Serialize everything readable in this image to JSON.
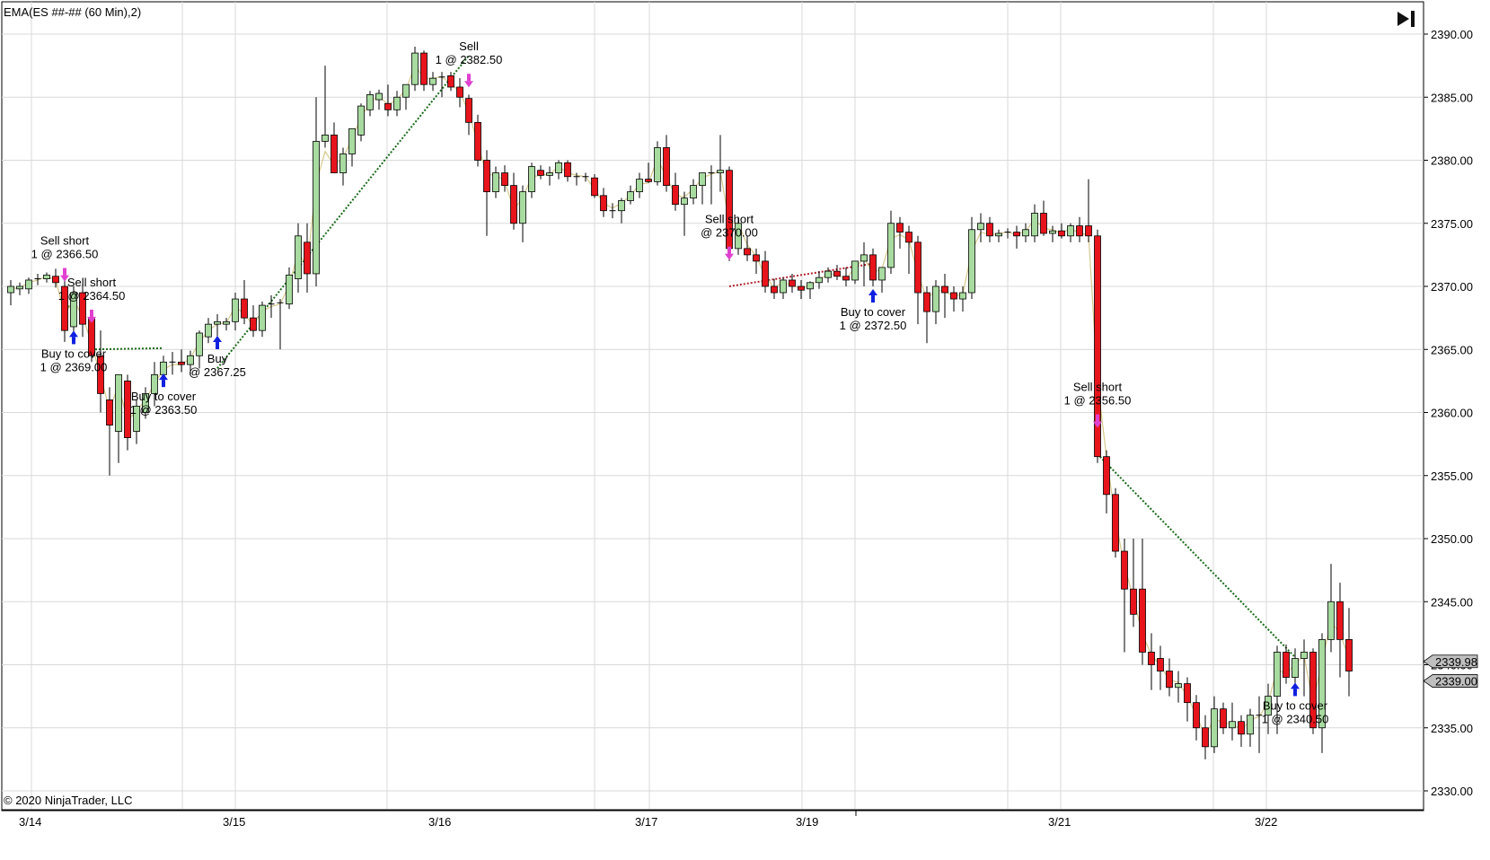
{
  "header": {
    "indicator_label": "EMA(ES ##-## (60 Min),2)"
  },
  "footer": {
    "copyright": "© 2020 NinjaTrader, LLC"
  },
  "price_tags": [
    "2339.98",
    "2339.00"
  ],
  "colors": {
    "up": "#a8dba0",
    "down": "#e8141c",
    "ema": "#d6c98c",
    "buy_arrow": "#1020e0",
    "sell_arrow": "#e040d0",
    "trade_line": "#1a6b1a",
    "grid": "#d9d9d9"
  },
  "chart_data": {
    "type": "candlestick",
    "title": "",
    "ylim": [
      2328,
      2392
    ],
    "y_ticks": [
      "2390.00",
      "2385.00",
      "2380.00",
      "2375.00",
      "2370.00",
      "2365.00",
      "2360.00",
      "2355.00",
      "2350.00",
      "2345.00",
      "2340.00",
      "2335.00",
      "2330.00"
    ],
    "x_labels": [
      "3/14",
      "3/15",
      "3/16",
      "3/17",
      "3/19",
      "3/21",
      "3/22"
    ],
    "x_label_index": [
      1,
      22,
      43,
      64,
      80,
      105,
      126
    ],
    "grid": true,
    "candles": [
      [
        2369.5,
        2370.5,
        2368.5,
        2370.0
      ],
      [
        2369.8,
        2370.3,
        2369.3,
        2370.0
      ],
      [
        2369.8,
        2370.7,
        2369.4,
        2370.5
      ],
      [
        2370.5,
        2371.0,
        2370.1,
        2370.6
      ],
      [
        2370.6,
        2371.1,
        2370.3,
        2370.9
      ],
      [
        2370.8,
        2371.4,
        2369.9,
        2370.3
      ],
      [
        2370.0,
        2371.2,
        2365.6,
        2366.5
      ],
      [
        2366.8,
        2370.0,
        2366.0,
        2369.5
      ],
      [
        2369.5,
        2370.2,
        2366.0,
        2367.0
      ],
      [
        2367.5,
        2367.9,
        2364.0,
        2364.5
      ],
      [
        2364.5,
        2366.5,
        2360.0,
        2361.5
      ],
      [
        2361.0,
        2362.0,
        2355.0,
        2359.0
      ],
      [
        2358.5,
        2363.0,
        2356.0,
        2363.0
      ],
      [
        2362.5,
        2363.0,
        2357.0,
        2358.0
      ],
      [
        2358.5,
        2361.0,
        2357.5,
        2360.5
      ],
      [
        2360.0,
        2362.0,
        2359.5,
        2361.5
      ],
      [
        2361.5,
        2364.0,
        2360.5,
        2363.0
      ],
      [
        2363.0,
        2364.5,
        2362.5,
        2364.0
      ],
      [
        2364.0,
        2364.8,
        2363.0,
        2364.0
      ],
      [
        2364.0,
        2365.0,
        2363.2,
        2363.8
      ],
      [
        2363.8,
        2364.9,
        2363.0,
        2364.5
      ],
      [
        2364.5,
        2366.5,
        2363.5,
        2366.3
      ],
      [
        2366.0,
        2367.5,
        2365.5,
        2367.0
      ],
      [
        2367.0,
        2367.8,
        2366.0,
        2367.2
      ],
      [
        2367.0,
        2367.5,
        2366.5,
        2367.2
      ],
      [
        2367.2,
        2369.5,
        2366.5,
        2369.0
      ],
      [
        2369.0,
        2370.5,
        2367.0,
        2367.5
      ],
      [
        2367.5,
        2368.5,
        2366.0,
        2366.5
      ],
      [
        2366.5,
        2368.8,
        2366.0,
        2368.5
      ],
      [
        2368.5,
        2369.3,
        2367.5,
        2368.6
      ],
      [
        2368.6,
        2369.0,
        2365.0,
        2368.7
      ],
      [
        2368.6,
        2371.5,
        2368.2,
        2370.9
      ],
      [
        2370.6,
        2375.0,
        2369.5,
        2374.0
      ],
      [
        2373.5,
        2375.0,
        2369.5,
        2371.0
      ],
      [
        2371.0,
        2385.0,
        2370.0,
        2381.5
      ],
      [
        2381.5,
        2387.5,
        2381.0,
        2382.0
      ],
      [
        2382.0,
        2383.0,
        2379.5,
        2379.0
      ],
      [
        2379.0,
        2381.0,
        2378.0,
        2380.5
      ],
      [
        2380.5,
        2382.0,
        2379.5,
        2382.5
      ],
      [
        2382.0,
        2384.5,
        2381.5,
        2384.3
      ],
      [
        2384.0,
        2385.5,
        2383.5,
        2385.2
      ],
      [
        2384.8,
        2385.6,
        2384.0,
        2385.3
      ],
      [
        2384.5,
        2386.0,
        2383.5,
        2384.0
      ],
      [
        2384.0,
        2385.5,
        2383.5,
        2385.0
      ],
      [
        2385.0,
        2386.0,
        2384.0,
        2386.0
      ],
      [
        2386.0,
        2389.0,
        2385.5,
        2388.5
      ],
      [
        2388.5,
        2388.7,
        2385.5,
        2386.0
      ],
      [
        2386.0,
        2387.0,
        2385.5,
        2386.5
      ],
      [
        2386.5,
        2387.0,
        2385.0,
        2386.6
      ],
      [
        2386.7,
        2387.0,
        2385.5,
        2385.8
      ],
      [
        2385.8,
        2386.5,
        2384.2,
        2385.0
      ],
      [
        2384.9,
        2385.2,
        2382.0,
        2383.0
      ],
      [
        2383.0,
        2383.6,
        2379.5,
        2380.0
      ],
      [
        2380.0,
        2380.8,
        2374.0,
        2377.5
      ],
      [
        2377.5,
        2379.5,
        2377.0,
        2379.0
      ],
      [
        2379.0,
        2379.6,
        2377.5,
        2378.0
      ],
      [
        2378.0,
        2379.0,
        2374.5,
        2375.0
      ],
      [
        2375.0,
        2378.0,
        2373.5,
        2377.5
      ],
      [
        2377.5,
        2379.8,
        2377.0,
        2379.5
      ],
      [
        2379.2,
        2379.6,
        2378.5,
        2378.8
      ],
      [
        2378.8,
        2379.5,
        2378.0,
        2379.0
      ],
      [
        2379.0,
        2380.0,
        2378.5,
        2379.8
      ],
      [
        2379.8,
        2380.0,
        2378.3,
        2378.7
      ],
      [
        2378.7,
        2379.0,
        2378.0,
        2378.7
      ],
      [
        2378.7,
        2379.0,
        2378.3,
        2378.6
      ],
      [
        2378.6,
        2378.9,
        2377.0,
        2377.2
      ],
      [
        2377.2,
        2377.8,
        2375.5,
        2376.0
      ],
      [
        2376.0,
        2376.6,
        2375.4,
        2376.0
      ],
      [
        2376.0,
        2377.0,
        2375.0,
        2376.8
      ],
      [
        2376.8,
        2378.0,
        2376.5,
        2377.5
      ],
      [
        2377.5,
        2379.0,
        2377.0,
        2378.5
      ],
      [
        2378.5,
        2379.8,
        2378.2,
        2378.3
      ],
      [
        2378.3,
        2381.5,
        2378.0,
        2381.0
      ],
      [
        2381.0,
        2382.0,
        2377.5,
        2378.0
      ],
      [
        2378.0,
        2379.0,
        2376.0,
        2376.5
      ],
      [
        2376.5,
        2377.5,
        2374.0,
        2377.0
      ],
      [
        2377.0,
        2378.5,
        2376.5,
        2378.0
      ],
      [
        2378.0,
        2379.0,
        2376.5,
        2379.0
      ],
      [
        2379.0,
        2379.6,
        2376.5,
        2379.0
      ],
      [
        2379.0,
        2382.0,
        2377.5,
        2379.2
      ],
      [
        2379.2,
        2379.5,
        2372.0,
        2373.0
      ],
      [
        2373.0,
        2375.5,
        2372.5,
        2375.0
      ],
      [
        2373.0,
        2374.0,
        2372.0,
        2372.5
      ],
      [
        2372.5,
        2373.0,
        2371.0,
        2372.0
      ],
      [
        2372.0,
        2372.8,
        2369.5,
        2370.0
      ],
      [
        2370.0,
        2370.6,
        2369.0,
        2369.5
      ],
      [
        2369.5,
        2370.7,
        2369.0,
        2370.5
      ],
      [
        2370.5,
        2371.0,
        2369.5,
        2370.0
      ],
      [
        2370.0,
        2370.5,
        2369.0,
        2369.7
      ],
      [
        2369.8,
        2370.4,
        2369.0,
        2370.3
      ],
      [
        2370.3,
        2371.2,
        2369.8,
        2370.7
      ],
      [
        2370.7,
        2371.5,
        2370.3,
        2371.2
      ],
      [
        2371.2,
        2371.7,
        2370.5,
        2370.8
      ],
      [
        2370.8,
        2371.5,
        2370.0,
        2370.5
      ],
      [
        2370.5,
        2372.0,
        2370.2,
        2372.0
      ],
      [
        2372.0,
        2373.5,
        2370.0,
        2372.5
      ],
      [
        2372.5,
        2373.0,
        2370.0,
        2370.5
      ],
      [
        2370.5,
        2371.5,
        2369.5,
        2371.5
      ],
      [
        2371.5,
        2376.0,
        2371.0,
        2375.0
      ],
      [
        2375.0,
        2375.5,
        2373.0,
        2374.3
      ],
      [
        2374.3,
        2374.8,
        2371.0,
        2373.5
      ],
      [
        2373.5,
        2374.0,
        2367.0,
        2369.5
      ],
      [
        2369.5,
        2370.0,
        2365.5,
        2368.0
      ],
      [
        2368.0,
        2370.5,
        2367.0,
        2370.0
      ],
      [
        2370.0,
        2371.0,
        2367.5,
        2369.5
      ],
      [
        2369.5,
        2370.0,
        2368.0,
        2369.0
      ],
      [
        2369.0,
        2370.0,
        2368.0,
        2369.5
      ],
      [
        2369.5,
        2375.5,
        2369.0,
        2374.5
      ],
      [
        2374.5,
        2375.8,
        2373.5,
        2375.0
      ],
      [
        2375.0,
        2375.5,
        2373.5,
        2374.0
      ],
      [
        2374.0,
        2374.5,
        2373.5,
        2374.2
      ],
      [
        2374.2,
        2374.6,
        2373.8,
        2374.3
      ],
      [
        2374.3,
        2374.8,
        2373.0,
        2374.0
      ],
      [
        2374.0,
        2375.0,
        2373.5,
        2374.5
      ],
      [
        2374.0,
        2376.5,
        2373.5,
        2375.8
      ],
      [
        2375.8,
        2376.8,
        2374.0,
        2374.2
      ],
      [
        2374.2,
        2374.8,
        2373.5,
        2374.4
      ],
      [
        2374.4,
        2375.0,
        2373.8,
        2374.0
      ],
      [
        2374.0,
        2375.0,
        2373.5,
        2374.8
      ],
      [
        2374.8,
        2375.5,
        2373.5,
        2374.0
      ],
      [
        2374.8,
        2378.5,
        2373.5,
        2374.0
      ],
      [
        2374.0,
        2374.5,
        2356.0,
        2356.5
      ],
      [
        2356.5,
        2357.0,
        2352.0,
        2353.5
      ],
      [
        2353.5,
        2354.0,
        2348.5,
        2349.0
      ],
      [
        2349.0,
        2350.0,
        2341.0,
        2346.0
      ],
      [
        2346.0,
        2350.0,
        2343.0,
        2344.0
      ],
      [
        2346.0,
        2350.0,
        2340.0,
        2341.0
      ],
      [
        2341.0,
        2342.5,
        2338.0,
        2340.0
      ],
      [
        2340.5,
        2341.5,
        2338.0,
        2339.5
      ],
      [
        2339.5,
        2340.5,
        2337.5,
        2338.2
      ],
      [
        2338.2,
        2339.5,
        2337.0,
        2338.5
      ],
      [
        2338.5,
        2339.0,
        2335.5,
        2337.0
      ],
      [
        2337.0,
        2337.6,
        2334.0,
        2335.0
      ],
      [
        2335.0,
        2336.0,
        2332.5,
        2333.5
      ],
      [
        2333.5,
        2337.5,
        2333.0,
        2336.5
      ],
      [
        2336.5,
        2337.0,
        2334.5,
        2335.0
      ],
      [
        2335.0,
        2337.0,
        2334.0,
        2335.5
      ],
      [
        2335.5,
        2336.0,
        2333.5,
        2334.5
      ],
      [
        2334.5,
        2336.5,
        2333.5,
        2336.0
      ],
      [
        2336.0,
        2337.5,
        2333.0,
        2336.0
      ],
      [
        2336.0,
        2338.5,
        2334.5,
        2337.5
      ],
      [
        2337.5,
        2341.5,
        2334.5,
        2341.0
      ],
      [
        2341.0,
        2341.6,
        2338.5,
        2339.0
      ],
      [
        2339.0,
        2341.3,
        2338.0,
        2340.5
      ],
      [
        2340.5,
        2342.0,
        2337.5,
        2341.0
      ],
      [
        2341.0,
        2341.3,
        2334.5,
        2335.0
      ],
      [
        2335.0,
        2342.5,
        2333.0,
        2342.0
      ],
      [
        2342.0,
        2348.0,
        2341.0,
        2345.0
      ],
      [
        2345.0,
        2346.5,
        2339.0,
        2342.0
      ],
      [
        2342.0,
        2344.5,
        2337.5,
        2339.5
      ]
    ],
    "ema": [
      2369.8,
      2369.9,
      2370.3,
      2370.5,
      2370.8,
      2370.5,
      2367.8,
      2368.9,
      2367.6,
      2365.5,
      2362.8,
      2360.3,
      2362.1,
      2359.4,
      2360.1,
      2361.0,
      2362.3,
      2363.4,
      2363.8,
      2363.8,
      2364.3,
      2365.6,
      2366.5,
      2367.0,
      2367.1,
      2368.4,
      2367.8,
      2366.9,
      2368.0,
      2368.4,
      2368.6,
      2370.1,
      2372.7,
      2371.6,
      2378.2,
      2380.7,
      2379.6,
      2380.2,
      2381.7,
      2383.4,
      2384.6,
      2385.1,
      2384.4,
      2384.8,
      2385.6,
      2387.5,
      2386.5,
      2386.5,
      2386.6,
      2386.1,
      2385.4,
      2383.8,
      2381.3,
      2378.8,
      2378.9,
      2378.3,
      2376.1,
      2377.0,
      2378.7,
      2378.8,
      2378.9,
      2379.5,
      2379.0,
      2378.8,
      2378.7,
      2377.7,
      2376.6,
      2376.2,
      2376.6,
      2377.2,
      2378.1,
      2378.2,
      2380.1,
      2378.7,
      2377.2,
      2377.1,
      2377.7,
      2378.6,
      2378.9,
      2379.1,
      2375.0,
      2375.0,
      2373.3,
      2372.4,
      2370.8,
      2369.9,
      2370.3,
      2370.1,
      2369.8,
      2370.1,
      2370.5,
      2371.0,
      2370.9,
      2370.6,
      2371.5,
      2372.2,
      2371.1,
      2371.4,
      2373.8,
      2374.1,
      2373.7,
      2371.0,
      2369.0,
      2369.7,
      2369.6,
      2369.2,
      2369.4,
      2372.8,
      2374.3,
      2374.1,
      2374.2,
      2374.3,
      2374.1,
      2374.4,
      2375.3,
      2374.6,
      2374.5,
      2374.2,
      2374.6,
      2374.2,
      2374.1,
      2362.4,
      2356.5,
      2351.5,
      2347.8,
      2345.3,
      2342.4,
      2340.8,
      2339.9,
      2338.8,
      2338.6,
      2337.5,
      2336.0,
      2334.3,
      2335.8,
      2335.3,
      2335.4,
      2334.8,
      2335.6,
      2335.9,
      2337.0,
      2339.7,
      2339.2,
      2340.1,
      2340.7,
      2336.9,
      2340.3,
      2343.4,
      2342.5,
      2340.5
    ]
  },
  "trades": [
    {
      "id": "t1",
      "side": "sell",
      "label_line1": "Sell short",
      "label_line2": "1 @ 2366.50",
      "bar": 6,
      "price": 2370.6
    },
    {
      "id": "t2",
      "side": "buy",
      "label_line1": "Buy to cover",
      "label_line2": "1 @ 2369.00",
      "bar": 7,
      "price": 2366.2
    },
    {
      "id": "t3",
      "side": "sell",
      "label_line1": "Sell short",
      "label_line2": "1 @ 2364.50",
      "bar": 9,
      "price": 2367.3
    },
    {
      "id": "t4",
      "side": "buy",
      "label_line1": "Buy to cover",
      "label_line2": "1 @ 2363.50",
      "bar": 17,
      "price": 2362.8
    },
    {
      "id": "t5",
      "side": "buy",
      "label_line1": "Buy",
      "label_line2": "@ 2367.25",
      "bar": 23,
      "price": 2365.8
    },
    {
      "id": "t6",
      "side": "sell",
      "label_line1": "Sell",
      "label_line2": "1 @ 2382.50",
      "bar": 51,
      "price": 2386.0
    },
    {
      "id": "t7",
      "side": "sell",
      "label_line1": "Sell short",
      "label_line2": "@ 2370.00",
      "bar": 80,
      "price": 2372.3
    },
    {
      "id": "t8",
      "side": "buy",
      "label_line1": "Buy to cover",
      "label_line2": "1 @ 2372.50",
      "bar": 96,
      "price": 2369.5
    },
    {
      "id": "t9",
      "side": "sell",
      "label_line1": "Sell short",
      "label_line2": "1 @ 2356.50",
      "bar": 121,
      "price": 2359.0
    },
    {
      "id": "t10",
      "side": "buy",
      "label_line1": "Buy to cover",
      "label_line2": "1 @ 2340.50",
      "bar": 143,
      "price": 2338.3
    }
  ]
}
